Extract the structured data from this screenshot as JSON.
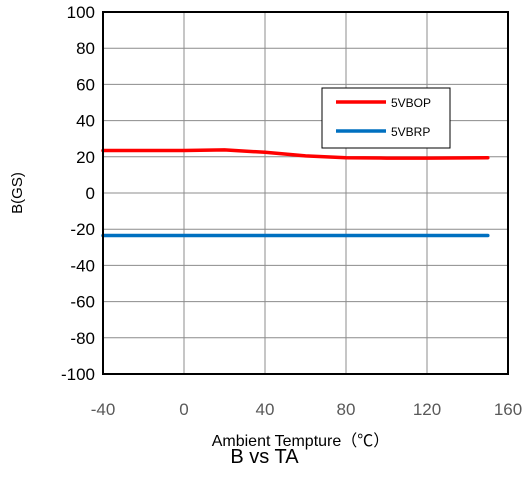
{
  "chart_data": {
    "type": "line",
    "xlabel": "Ambient Tempture（℃）",
    "ylabel": "B(GS)",
    "caption": "B   vs   TA",
    "xlim": [
      -40,
      160
    ],
    "ylim": [
      -100,
      100
    ],
    "xticks": [
      "-40",
      "0",
      "40",
      "80",
      "120",
      "160"
    ],
    "yticks": [
      "100",
      "80",
      "60",
      "40",
      "20",
      "0",
      "-20",
      "-40",
      "-60",
      "-80",
      "-100"
    ],
    "grid": true,
    "legend_position": "upper-right",
    "series": [
      {
        "name": "5VBOP",
        "color": "#ff0000",
        "x": [
          -40,
          -20,
          0,
          20,
          40,
          60,
          80,
          100,
          120,
          150
        ],
        "y": [
          23.5,
          23.5,
          23.5,
          23.8,
          22.5,
          20.5,
          19.5,
          19.3,
          19.3,
          19.5
        ]
      },
      {
        "name": "5VBRP",
        "color": "#0070c0",
        "x": [
          -40,
          0,
          40,
          80,
          120,
          150
        ],
        "y": [
          -23.5,
          -23.5,
          -23.5,
          -23.5,
          -23.5,
          -23.5
        ]
      }
    ]
  }
}
